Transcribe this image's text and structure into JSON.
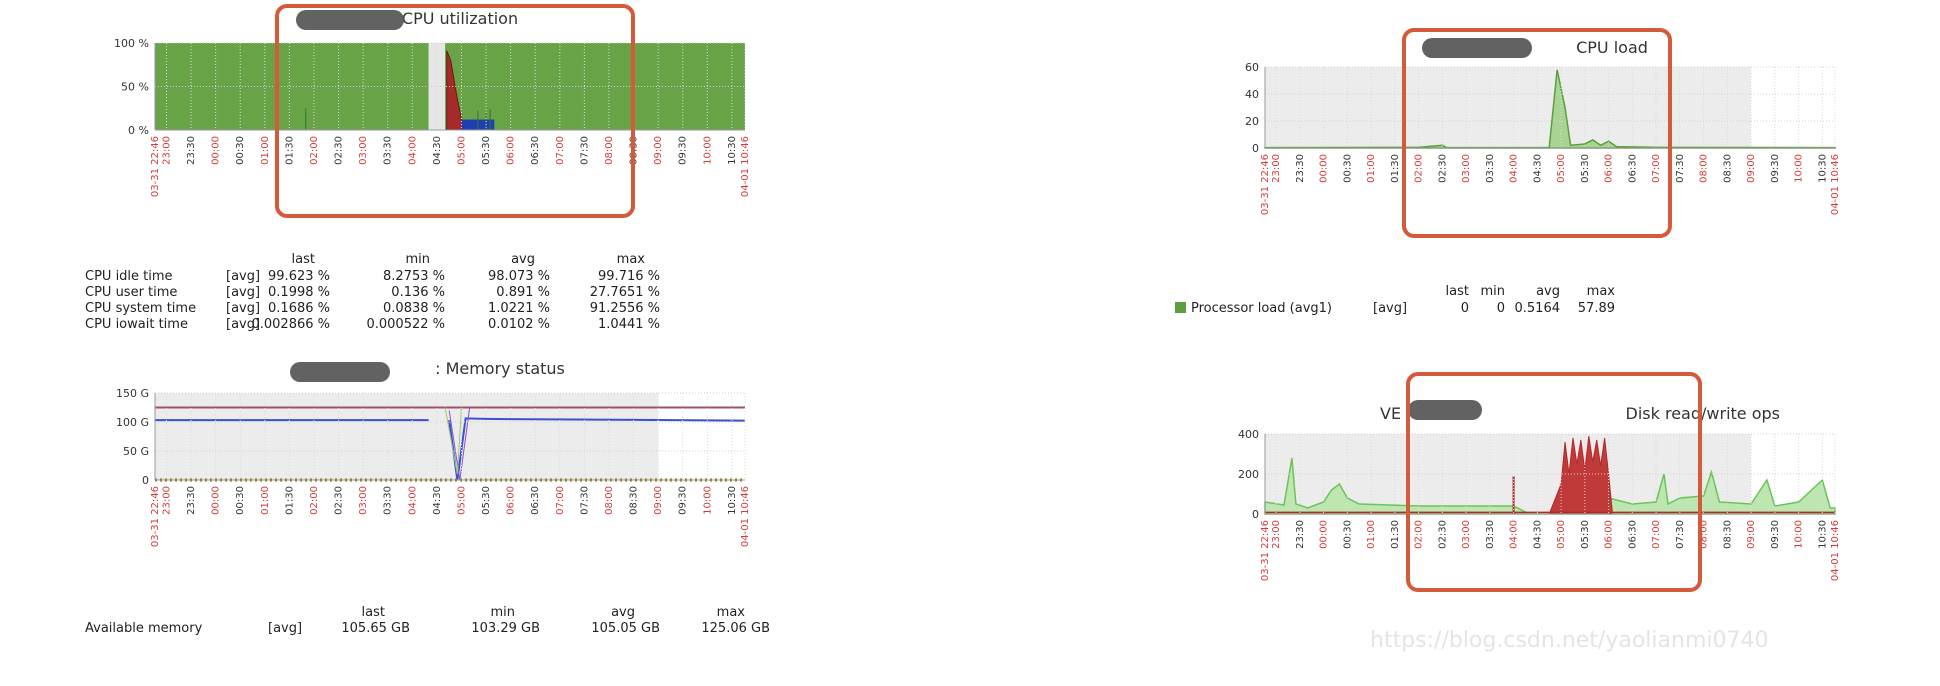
{
  "panels": [
    {
      "id": "cpu-util",
      "title": "CPU utilization",
      "type": "area",
      "ylim": [
        0,
        100
      ],
      "y_ticks": [
        "100 %",
        "50 %",
        "0 %"
      ],
      "x_tick_labels": [
        "03-31 22:46",
        "23:00",
        "23:30",
        "00:00",
        "00:30",
        "01:00",
        "01:30",
        "02:00",
        "02:30",
        "03:00",
        "03:30",
        "04:00",
        "04:30",
        "05:00",
        "05:30",
        "06:00",
        "06:30",
        "07:00",
        "07:30",
        "08:00",
        "08:30",
        "09:00",
        "09:30",
        "10:00",
        "10:30",
        "04-01 10:46"
      ],
      "red_x_ticks": [
        "03-31 22:46",
        "23:00",
        "00:00",
        "01:00",
        "02:00",
        "03:00",
        "04:00",
        "05:00",
        "06:00",
        "07:00",
        "08:00",
        "09:00",
        "10:00",
        "04-01 10:46"
      ],
      "gap": [
        "04:20",
        "04:40"
      ],
      "series_colors": {
        "idle": "#69a347",
        "user": "#1f3fb0",
        "system": "#a52a2a",
        "iowait": "#2d7a2d"
      },
      "spike_system": {
        "time": "04:42",
        "value": 91.26
      },
      "user_block": {
        "start": "05:00",
        "end": "05:40",
        "value": 12
      },
      "stats_header": [
        "last",
        "min",
        "avg",
        "max"
      ],
      "stats": [
        {
          "name": "CPU idle time",
          "func": "[avg]",
          "last": "99.623 %",
          "min": "8.2753 %",
          "avg": "98.073 %",
          "max": "99.716 %"
        },
        {
          "name": "CPU user time",
          "func": "[avg]",
          "last": "0.1998 %",
          "min": "0.136 %",
          "avg": "0.891 %",
          "max": "27.7651 %"
        },
        {
          "name": "CPU system time",
          "func": "[avg]",
          "last": "0.1686 %",
          "min": "0.0838 %",
          "avg": "1.0221 %",
          "max": "91.2556 %"
        },
        {
          "name": "CPU iowait time",
          "func": "[avg]",
          "last": "0.002866 %",
          "min": "0.000522 %",
          "avg": "0.0102 %",
          "max": "1.0441 %"
        }
      ]
    },
    {
      "id": "memory",
      "title": ": Memory status",
      "type": "line",
      "ylim": [
        0,
        150
      ],
      "y_ticks": [
        "150 G",
        "100 G",
        "50 G",
        "0"
      ],
      "x_tick_labels": [
        "03-31 22:46",
        "23:00",
        "23:30",
        "00:00",
        "00:30",
        "01:00",
        "01:30",
        "02:00",
        "02:30",
        "03:00",
        "03:30",
        "04:00",
        "04:30",
        "05:00",
        "05:30",
        "06:00",
        "06:30",
        "07:00",
        "07:30",
        "08:00",
        "08:30",
        "09:00",
        "09:30",
        "10:00",
        "10:30",
        "04-01 10:46"
      ],
      "red_x_ticks": [
        "03-31 22:46",
        "23:00",
        "00:00",
        "01:00",
        "02:00",
        "03:00",
        "04:00",
        "05:00",
        "06:00",
        "07:00",
        "08:00",
        "09:00",
        "10:00",
        "04-01 10:46"
      ],
      "gray_region_end": "09:00",
      "total_line": {
        "color": "#a0506a",
        "value": 125.06
      },
      "available_line": {
        "color": "#3b4fd0",
        "value": 103.3
      },
      "stats_header": [
        "last",
        "min",
        "avg",
        "max"
      ],
      "stats": [
        {
          "name": "Available memory",
          "func": "[avg]",
          "last": "105.65 GB",
          "min": "103.29 GB",
          "avg": "105.05 GB",
          "max": "125.06 GB"
        }
      ]
    },
    {
      "id": "cpu-load",
      "title": "CPU load",
      "type": "area",
      "ylim": [
        0,
        60
      ],
      "y_ticks": [
        "60",
        "40",
        "20",
        "0"
      ],
      "x_tick_labels": [
        "03-31 22:46",
        "23:00",
        "23:30",
        "00:00",
        "00:30",
        "01:00",
        "01:30",
        "02:00",
        "02:30",
        "03:00",
        "03:30",
        "04:00",
        "04:30",
        "05:00",
        "05:30",
        "06:00",
        "06:30",
        "07:00",
        "07:30",
        "08:00",
        "08:30",
        "09:00",
        "09:30",
        "10:00",
        "10:30",
        "04-01 10:46"
      ],
      "red_x_ticks": [
        "03-31 22:46",
        "23:00",
        "00:00",
        "01:00",
        "02:00",
        "03:00",
        "04:00",
        "05:00",
        "06:00",
        "07:00",
        "08:00",
        "09:00",
        "10:00",
        "04-01 10:46"
      ],
      "gray_region_end": "09:00",
      "color": "#5aa03c",
      "legend": {
        "name": "Processor load (avg1)",
        "func": "[avg]",
        "last": "0",
        "min": "0",
        "avg": "0.5164",
        "max": "57.89"
      },
      "stats_header": [
        "last",
        "min",
        "avg",
        "max"
      ]
    },
    {
      "id": "disk",
      "title_prefix": "VE",
      "title": "Disk read/write ops",
      "type": "area",
      "ylim": [
        0,
        400
      ],
      "y_ticks": [
        "400",
        "200",
        "0"
      ],
      "x_tick_labels": [
        "03-31 22:46",
        "23:00",
        "23:30",
        "00:00",
        "00:30",
        "01:00",
        "01:30",
        "02:00",
        "02:30",
        "03:00",
        "03:30",
        "04:00",
        "04:30",
        "05:00",
        "05:30",
        "06:00",
        "06:30",
        "07:00",
        "07:30",
        "08:00",
        "08:30",
        "09:00",
        "09:30",
        "10:00",
        "10:30",
        "04-01 10:46"
      ],
      "red_x_ticks": [
        "03-31 22:46",
        "23:00",
        "00:00",
        "01:00",
        "02:00",
        "03:00",
        "04:00",
        "05:00",
        "06:00",
        "07:00",
        "08:00",
        "09:00",
        "10:00",
        "04-01 10:46"
      ],
      "gray_region_end": "09:00",
      "read_color": "#6cc35a",
      "write_color": "#b02a2a"
    }
  ],
  "watermark": "https://blog.csdn.net/yaolianmi0740",
  "colors": {
    "highlight": "#d35a3a",
    "plot_bg_gray": "#e8e8e8",
    "grid": "#c8c8c8"
  }
}
